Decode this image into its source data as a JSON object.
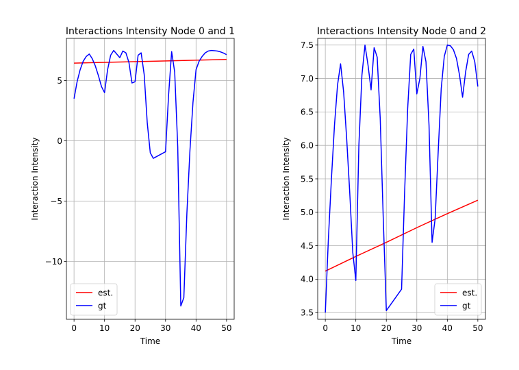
{
  "chart_data": [
    {
      "type": "line",
      "title": "Interactions Intensity Node 0 and 1",
      "xlabel": "Time",
      "ylabel": "Interaction Intensity",
      "xlim": [
        -2.5,
        52.5
      ],
      "ylim": [
        -14.8,
        8.5
      ],
      "xticks": [
        0,
        10,
        20,
        30,
        40,
        50
      ],
      "xtick_labels": [
        "0",
        "10",
        "20",
        "30",
        "40",
        "50"
      ],
      "yticks": [
        -10,
        -5,
        0,
        5
      ],
      "ytick_labels": [
        "−10",
        "−5",
        "0",
        "5"
      ],
      "grid": true,
      "legend": "lower-left",
      "series": [
        {
          "name": "est.",
          "color": "#ff0000",
          "x": [
            0,
            50
          ],
          "y": [
            6.45,
            6.75
          ]
        },
        {
          "name": "gt",
          "color": "#0000ff",
          "x": [
            0,
            1,
            2,
            3,
            4,
            5,
            6,
            7,
            8,
            9,
            10,
            11,
            12,
            13,
            14,
            15,
            16,
            17,
            18,
            19,
            20,
            21,
            22,
            23,
            24,
            25,
            26,
            30,
            31,
            32,
            33,
            34,
            35,
            36,
            37,
            38,
            39,
            40,
            41,
            42,
            43,
            44,
            45,
            46,
            47,
            48,
            49,
            50
          ],
          "y": [
            3.5,
            4.9,
            5.9,
            6.6,
            7.0,
            7.2,
            6.8,
            6.2,
            5.4,
            4.5,
            4.0,
            5.9,
            7.1,
            7.5,
            7.2,
            6.9,
            7.45,
            7.3,
            6.5,
            4.8,
            4.9,
            7.1,
            7.3,
            5.5,
            1.5,
            -1.0,
            -1.45,
            -0.9,
            3.8,
            7.4,
            5.7,
            -0.5,
            -13.7,
            -13.0,
            -6.0,
            -0.8,
            3.2,
            5.9,
            6.6,
            7.0,
            7.3,
            7.45,
            7.5,
            7.48,
            7.45,
            7.38,
            7.28,
            7.15
          ]
        }
      ]
    },
    {
      "type": "line",
      "title": "Interactions Intensity Node 0 and 2",
      "xlabel": "Time",
      "ylabel": "Interaction Intensity",
      "xlim": [
        -2.5,
        52.5
      ],
      "ylim": [
        3.4,
        7.6
      ],
      "xticks": [
        0,
        10,
        20,
        30,
        40,
        50
      ],
      "xtick_labels": [
        "0",
        "10",
        "20",
        "30",
        "40",
        "50"
      ],
      "yticks": [
        3.5,
        4.0,
        4.5,
        5.0,
        5.5,
        6.0,
        6.5,
        7.0,
        7.5
      ],
      "ytick_labels": [
        "3.5",
        "4.0",
        "4.5",
        "5.0",
        "5.5",
        "6.0",
        "6.5",
        "7.0",
        "7.5"
      ],
      "grid": true,
      "legend": "lower-right",
      "series": [
        {
          "name": "est.",
          "color": "#ff0000",
          "x": [
            0,
            10,
            20,
            30,
            40,
            50
          ],
          "y": [
            4.12,
            4.34,
            4.55,
            4.77,
            4.98,
            5.18
          ]
        },
        {
          "name": "gt",
          "color": "#0000ff",
          "x": [
            0,
            1,
            2,
            3,
            4,
            5,
            6,
            7,
            8,
            9,
            10,
            11,
            12,
            13,
            14,
            15,
            16,
            17,
            18,
            19,
            20,
            25,
            26,
            27,
            28,
            29,
            30,
            31,
            32,
            33,
            34,
            35,
            36,
            37,
            38,
            39,
            40,
            41,
            42,
            43,
            44,
            45,
            46,
            47,
            48,
            49,
            50
          ],
          "y": [
            3.5,
            4.6,
            5.5,
            6.3,
            6.9,
            7.22,
            6.8,
            6.1,
            5.3,
            4.4,
            3.98,
            6.0,
            7.05,
            7.5,
            7.2,
            6.83,
            7.46,
            7.32,
            6.4,
            4.9,
            3.53,
            3.85,
            5.3,
            6.55,
            7.36,
            7.44,
            6.77,
            7.0,
            7.48,
            7.25,
            6.3,
            4.55,
            4.9,
            5.9,
            6.85,
            7.33,
            7.5,
            7.49,
            7.43,
            7.3,
            7.05,
            6.72,
            7.1,
            7.36,
            7.41,
            7.25,
            6.88
          ]
        }
      ]
    }
  ]
}
